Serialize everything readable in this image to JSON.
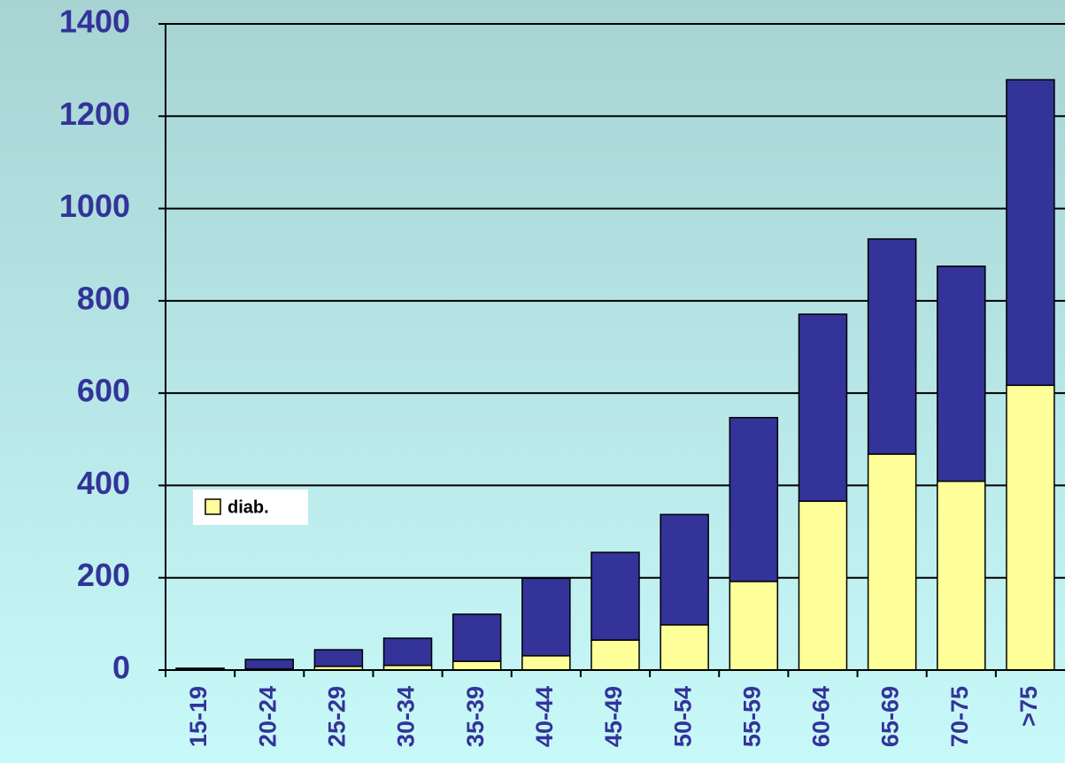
{
  "chart_data": {
    "type": "stacked_bar",
    "categories": [
      "15-19",
      "20-24",
      "25-29",
      "30-34",
      "35-39",
      "40-44",
      "45-49",
      "50-54",
      "55-59",
      "60-64",
      "65-69",
      "70-75",
      ">75"
    ],
    "series": [
      {
        "name": "diab.",
        "color": "#ffff99",
        "values": [
          2,
          2,
          8,
          10,
          19,
          31,
          65,
          98,
          192,
          366,
          468,
          409,
          617
        ]
      },
      {
        "color": "#333399",
        "values": [
          2,
          21,
          36,
          59,
          102,
          168,
          190,
          239,
          355,
          405,
          466,
          466,
          662
        ]
      }
    ],
    "ylim": [
      0,
      1400
    ],
    "yticks": [
      0,
      200,
      400,
      600,
      800,
      1000,
      1200,
      1400
    ],
    "grid": true,
    "legend": "left"
  }
}
